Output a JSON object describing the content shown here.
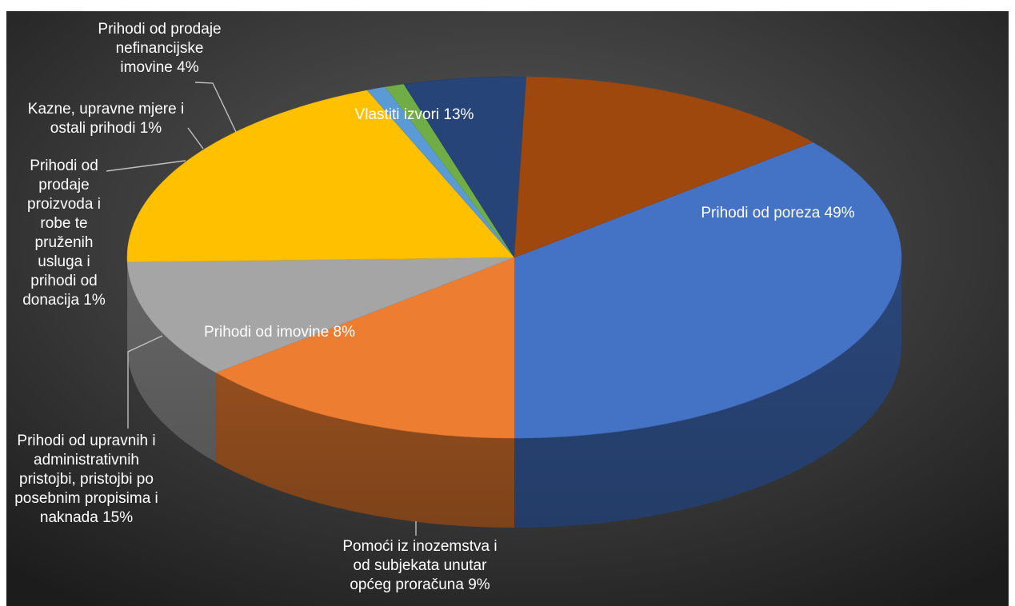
{
  "chart_data": {
    "type": "pie",
    "is_3d": true,
    "legend": "none",
    "slices": [
      {
        "label": "Prihodi od poreza",
        "value": 49,
        "display": "Prihodi od poreza 49%",
        "color": "#4472c4"
      },
      {
        "label": "Pomoći iz inozemstva i od subjekata unutar općeg proračuna",
        "value": 9,
        "display": "Pomoći iz inozemstva i\nod subjekata unutar\nopćeg proračuna 9%",
        "color": "#ed7d31"
      },
      {
        "label": "Prihodi od imovine",
        "value": 8,
        "display": "Prihodi od imovine 8%",
        "color": "#a5a5a5"
      },
      {
        "label": "Prihodi od upravnih i administrativnih pristojbi, pristojbi po posebnim propisima i naknada",
        "value": 15,
        "display": "Prihodi od upravnih i\nadministrativnih\npristojbi, pristojbi po\nposebnim propisima i\nnaknada 15%",
        "color": "#ffc000"
      },
      {
        "label": "Prihodi od prodaje proizvoda i robe te pruženih usluga i prihodi od donacija",
        "value": 1,
        "display": "Prihodi od\nprodaje\nproizvoda i\nrobe te\npruženih\nusluga i\nprihodi od\ndonacija 1%",
        "color": "#5b9bd5"
      },
      {
        "label": "Kazne, upravne mjere i ostali prihodi",
        "value": 1,
        "display": "Kazne, upravne mjere i\nostali prihodi 1%",
        "color": "#70ad47"
      },
      {
        "label": "Prihodi od prodaje nefinancijske imovine",
        "value": 4,
        "display": "Prihodi od prodaje\nnefinancijske\nimovine 4%",
        "color": "#264478"
      },
      {
        "label": "Vlastiti izvori",
        "value": 13,
        "display": "Vlastiti izvori  13%",
        "color": "#9e480e"
      }
    ]
  }
}
